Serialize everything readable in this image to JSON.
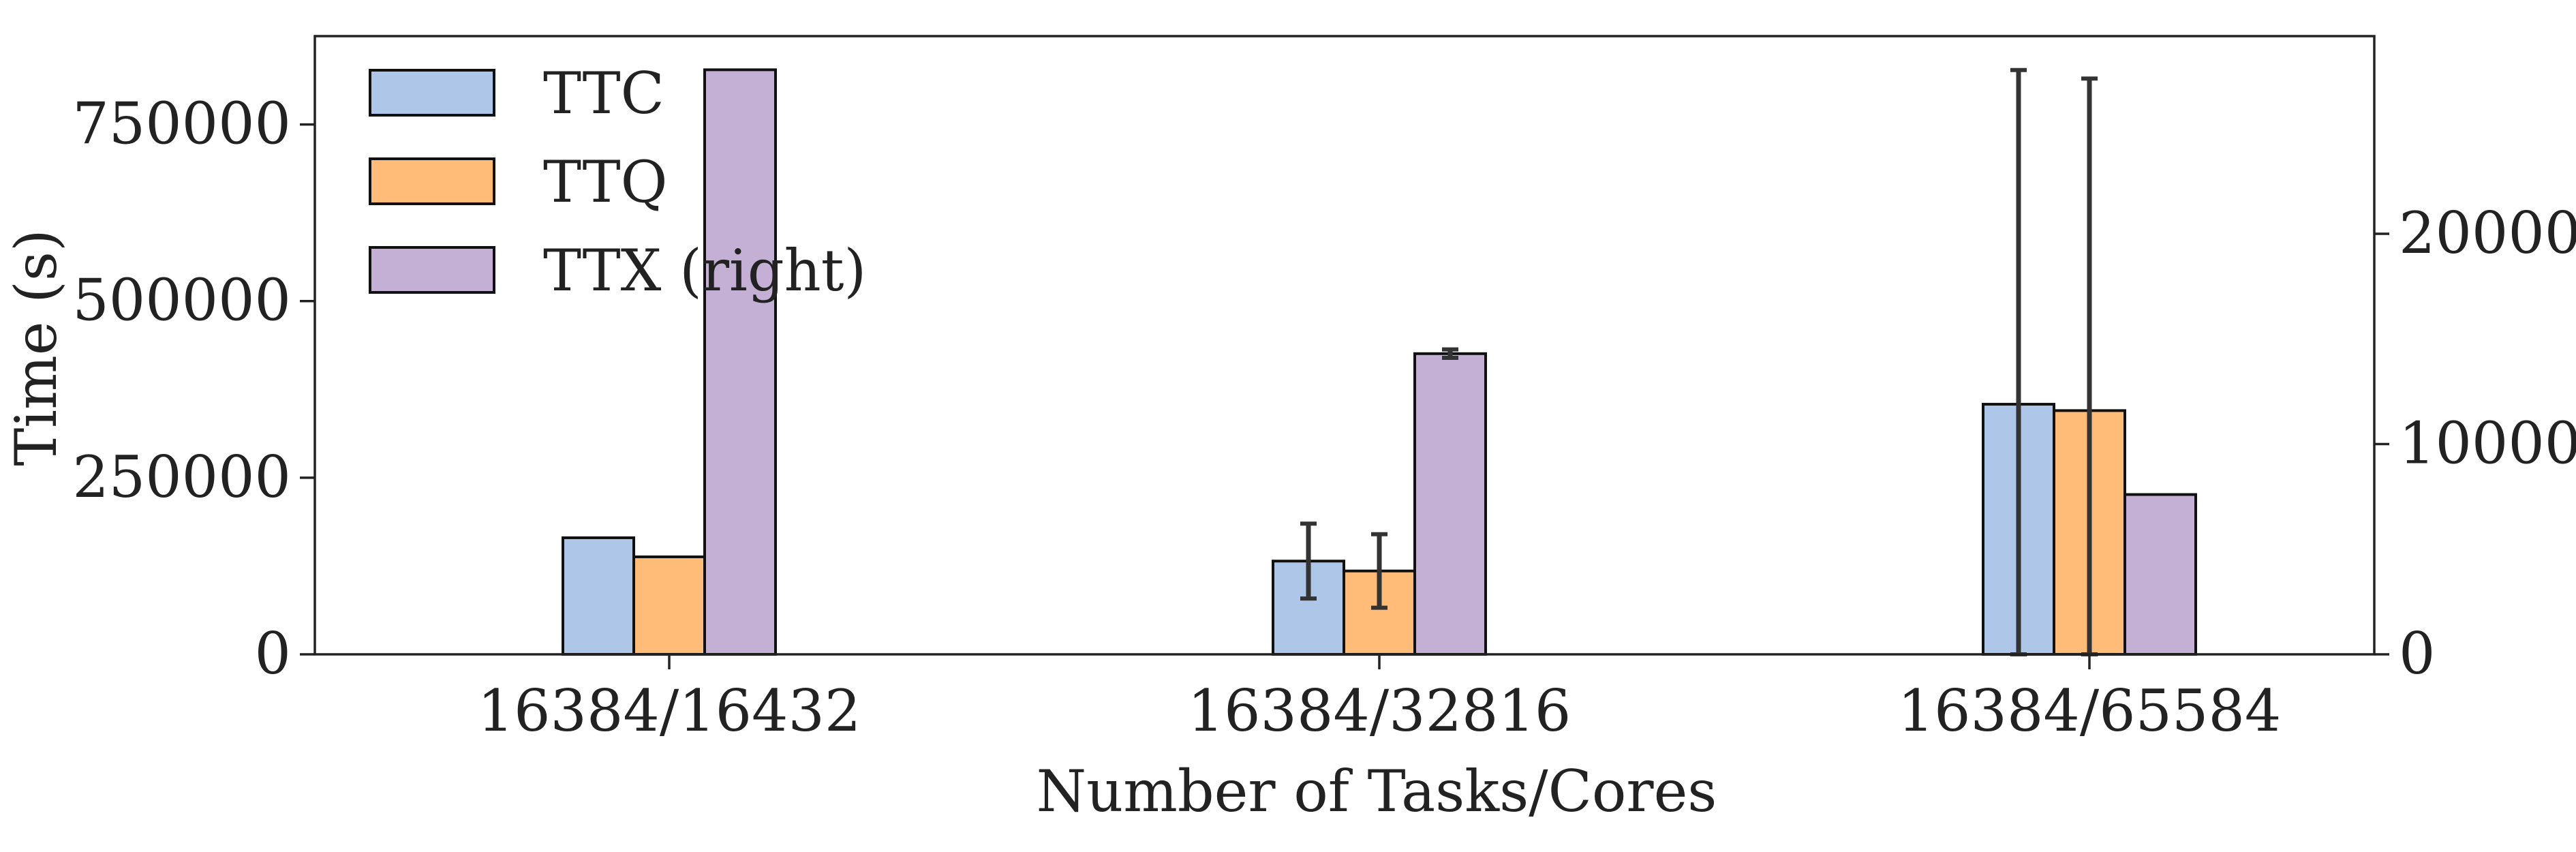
{
  "chart_data": {
    "type": "bar",
    "categories": [
      "16384/16432",
      "16384/32816",
      "16384/65584"
    ],
    "xlabel": "Number of Tasks/Cores",
    "ylabel": "Time (s)",
    "ylim_left": [
      0,
      875000
    ],
    "ylim_right": [
      0,
      29400
    ],
    "yticks_left": [
      0,
      250000,
      500000,
      750000
    ],
    "yticks_left_labels": [
      "0",
      "250000",
      "500000",
      "750000"
    ],
    "yticks_right": [
      0,
      10000,
      20000
    ],
    "yticks_right_labels": [
      "0",
      "10000",
      "20000"
    ],
    "legend_position": "top-left",
    "grid": false,
    "series": [
      {
        "name": "TTC",
        "axis": "left",
        "color": "#aec7e8",
        "values": [
          165000,
          132000,
          354000
        ],
        "error": [
          0,
          53000,
          473000
        ]
      },
      {
        "name": "TTQ",
        "axis": "left",
        "color": "#ffbb78",
        "values": [
          138000,
          118000,
          345000
        ],
        "error": [
          0,
          52000,
          470000
        ]
      },
      {
        "name": "TTX (right)",
        "axis": "right",
        "color": "#c5b0d5",
        "values": [
          27800,
          14300,
          7600
        ],
        "error": [
          0,
          200,
          0
        ]
      }
    ]
  }
}
